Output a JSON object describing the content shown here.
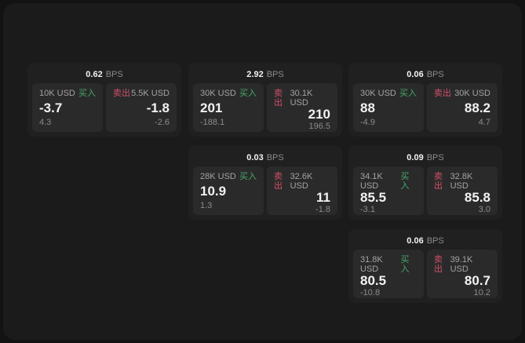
{
  "labels": {
    "bps_unit": "BPS",
    "buy": "买入",
    "sell": "卖出"
  },
  "colors": {
    "panel_bg": "#1b1b1c",
    "outer_bg": "#131314",
    "card_bg": "#202021",
    "cell_bg": "#2a2a2b",
    "buy": "#45a868",
    "sell": "#d15066"
  },
  "cards": [
    {
      "bps": "0.62",
      "buy": {
        "amount": "10K USD",
        "price": "-3.7",
        "delta": "4.3"
      },
      "sell": {
        "amount": "5.5K USD",
        "price": "-1.8",
        "delta": "-2.6"
      }
    },
    {
      "bps": "2.92",
      "buy": {
        "amount": "30K USD",
        "price": "201",
        "delta": "-188.1"
      },
      "sell": {
        "amount": "30.1K USD",
        "price": "210",
        "delta": "196.5"
      }
    },
    {
      "bps": "0.06",
      "buy": {
        "amount": "30K USD",
        "price": "88",
        "delta": "-4.9"
      },
      "sell": {
        "amount": "30K USD",
        "price": "88.2",
        "delta": "4.7"
      }
    },
    {
      "bps": "0.03",
      "buy": {
        "amount": "28K USD",
        "price": "10.9",
        "delta": "1.3"
      },
      "sell": {
        "amount": "32.6K USD",
        "price": "11",
        "delta": "-1.8"
      }
    },
    {
      "bps": "0.09",
      "buy": {
        "amount": "34.1K USD",
        "price": "85.5",
        "delta": "-3.1"
      },
      "sell": {
        "amount": "32.8K USD",
        "price": "85.8",
        "delta": "3.0"
      }
    },
    {
      "bps": "0.06",
      "buy": {
        "amount": "31.8K USD",
        "price": "80.5",
        "delta": "-10.8"
      },
      "sell": {
        "amount": "39.1K USD",
        "price": "80.7",
        "delta": "10.2"
      }
    }
  ]
}
